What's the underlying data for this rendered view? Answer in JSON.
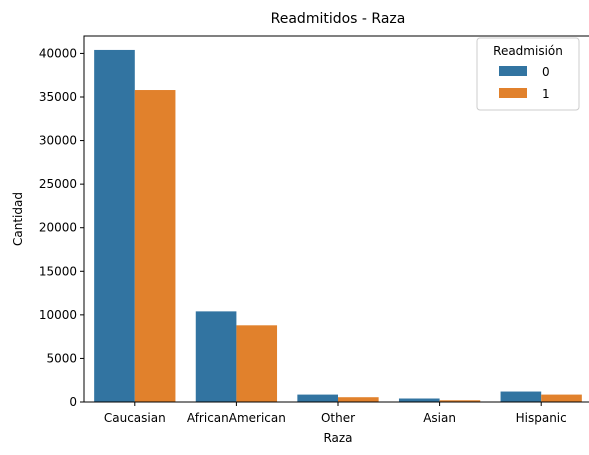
{
  "chart_data": {
    "type": "bar",
    "title": "Readmitidos - Raza",
    "xlabel": "Raza",
    "ylabel": "Cantidad",
    "categories": [
      "Caucasian",
      "AfricanAmerican",
      "Other",
      "Asian",
      "Hispanic"
    ],
    "series": [
      {
        "name": "0",
        "color": "#3274a1",
        "values": [
          40400,
          10400,
          850,
          400,
          1200
        ]
      },
      {
        "name": "1",
        "color": "#e1812c",
        "values": [
          35800,
          8800,
          550,
          200,
          850
        ]
      }
    ],
    "ylim": [
      0,
      42000
    ],
    "yticks": [
      0,
      5000,
      10000,
      15000,
      20000,
      25000,
      30000,
      35000,
      40000
    ],
    "legend": {
      "title": "Readmisión",
      "position": "top-right"
    },
    "grid": false
  }
}
